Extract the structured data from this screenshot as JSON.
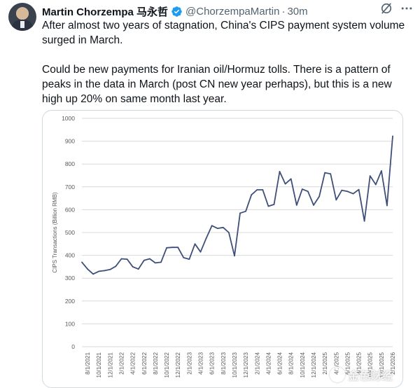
{
  "tweet": {
    "display_name": "Martin Chorzempa 马永哲",
    "handle": "@ChorzempaMartin",
    "separator": "·",
    "time": "30m",
    "paragraphs": [
      "After almost two years of stagnation, China's CIPS payment system volume surged in March.",
      "Could be new payments for Iranian oil/Hormuz tolls. There is a pattern of peaks in the data in March (post CN new year perhaps), but this is a new high up 20% on same month last year."
    ],
    "icons": {
      "verified": "verified-badge-icon",
      "grok": "grok-icon",
      "more": "more-options-icon"
    },
    "colors": {
      "verified": "#1d9bf0",
      "line": "#3f4f7a"
    }
  },
  "watermark": {
    "text": "金色财经"
  },
  "chart_data": {
    "type": "line",
    "ylabel": "CIPS Transactions (Billion RMB)",
    "ylim": [
      0,
      1000
    ],
    "yticks": [
      0,
      100,
      200,
      300,
      400,
      500,
      600,
      700,
      800,
      900,
      1000
    ],
    "grid": true,
    "xtick_labels": [
      "8/1/2021",
      "10/1/2021",
      "12/1/2021",
      "2/1/2022",
      "4/1/2022",
      "6/1/2022",
      "8/1/2022",
      "10/1/2022",
      "12/1/2022",
      "2/1/2023",
      "4/1/2023",
      "6/1/2023",
      "8/1/2023",
      "10/1/2023",
      "12/1/2023",
      "2/1/2024",
      "4/1/2024",
      "6/1/2024",
      "8/1/2024",
      "10/1/2024",
      "12/1/2024",
      "2/1/2025",
      "4/1/2025",
      "6/1/2025",
      "8/1/2025",
      "10/1/2025",
      "12/1/2025",
      "2/1/2026"
    ],
    "x_start": "7/1/2021",
    "values": [
      370,
      340,
      318,
      330,
      333,
      338,
      352,
      385,
      383,
      350,
      340,
      378,
      385,
      367,
      370,
      433,
      435,
      435,
      390,
      383,
      450,
      415,
      475,
      530,
      518,
      522,
      500,
      398,
      585,
      593,
      665,
      687,
      687,
      615,
      623,
      767,
      713,
      735,
      620,
      690,
      680,
      620,
      658,
      762,
      757,
      643,
      685,
      680,
      670,
      688,
      550,
      748,
      710,
      770,
      618,
      922
    ]
  }
}
